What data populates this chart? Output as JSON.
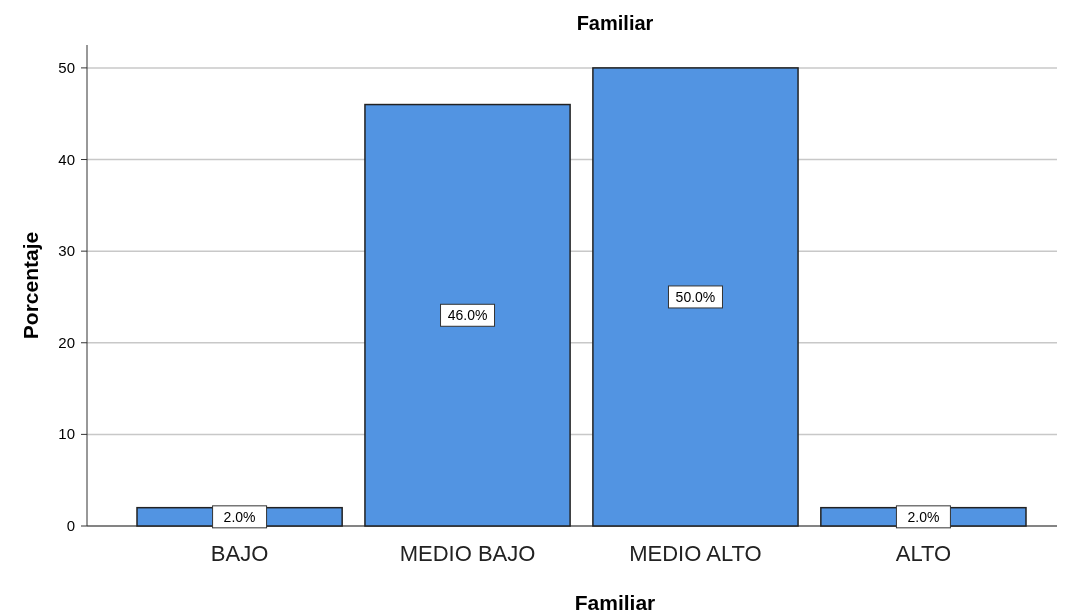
{
  "chart_data": {
    "type": "bar",
    "title": "Familiar",
    "xlabel": "Familiar",
    "ylabel": "Porcentaje",
    "categories": [
      "BAJO",
      "MEDIO BAJO",
      "MEDIO ALTO",
      "ALTO"
    ],
    "values": [
      2,
      46,
      50,
      2
    ],
    "value_labels": [
      "2.0%",
      "46.0%",
      "50.0%",
      "2.0%"
    ],
    "color": "#5294e2",
    "ylim": [
      0,
      52.5
    ],
    "yticks": [
      0,
      10,
      20,
      30,
      40,
      50
    ],
    "grid": "y"
  }
}
